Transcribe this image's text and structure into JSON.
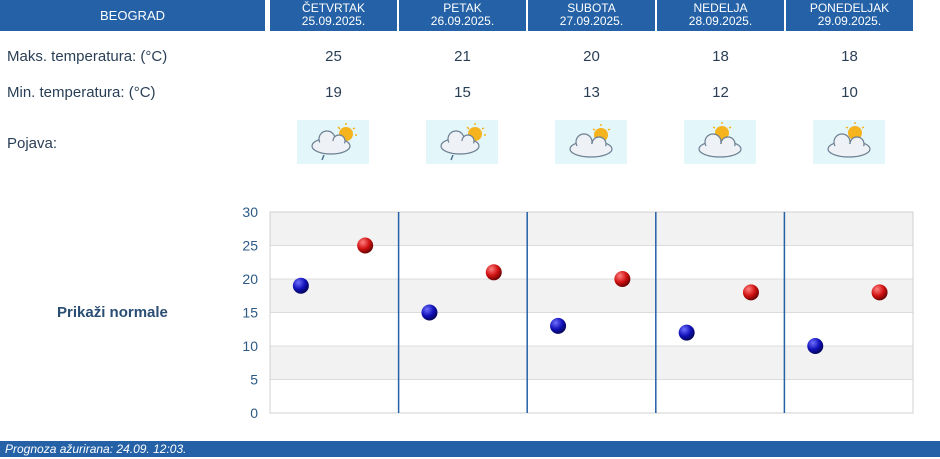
{
  "header": {
    "city": "BEOGRAD",
    "days": [
      {
        "name": "ČETVRTAK",
        "date": "25.09.2025."
      },
      {
        "name": "PETAK",
        "date": "26.09.2025."
      },
      {
        "name": "SUBOTA",
        "date": "27.09.2025."
      },
      {
        "name": "NEDELJA",
        "date": "28.09.2025."
      },
      {
        "name": "PONEDELJAK",
        "date": "29.09.2025."
      }
    ]
  },
  "rows": {
    "max_label": "Maks. temperatura: (°C)",
    "min_label": "Min. temperatura: (°C)",
    "phenomenon_label": "Pojava:",
    "max_values": [
      "25",
      "21",
      "20",
      "18",
      "18"
    ],
    "min_values": [
      "19",
      "15",
      "13",
      "12",
      "10"
    ]
  },
  "icons": [
    "cloud-sun-drizzle-icon",
    "cloud-sun-drizzle-icon",
    "cloud-sun-icon",
    "cloud-sun-icon",
    "cloud-sun-icon"
  ],
  "normals_link": "Prikaži normale",
  "footer": {
    "text": "Prognoza ažurirana:  24.09. 12:03."
  },
  "colors": {
    "header_bg": "#2461a6",
    "min_marker": "#1010a8",
    "max_marker": "#c81010",
    "chart_band": "#f2f2f2",
    "day_separator": "#2461a6"
  },
  "chart_data": {
    "type": "scatter",
    "ylim": [
      0,
      30
    ],
    "yticks": [
      "0",
      "5",
      "10",
      "15",
      "20",
      "25",
      "30"
    ],
    "grid": true,
    "series": [
      {
        "values": [
          19,
          15,
          13,
          12,
          10
        ]
      },
      {
        "values": [
          25,
          21,
          20,
          18,
          18
        ]
      }
    ]
  }
}
